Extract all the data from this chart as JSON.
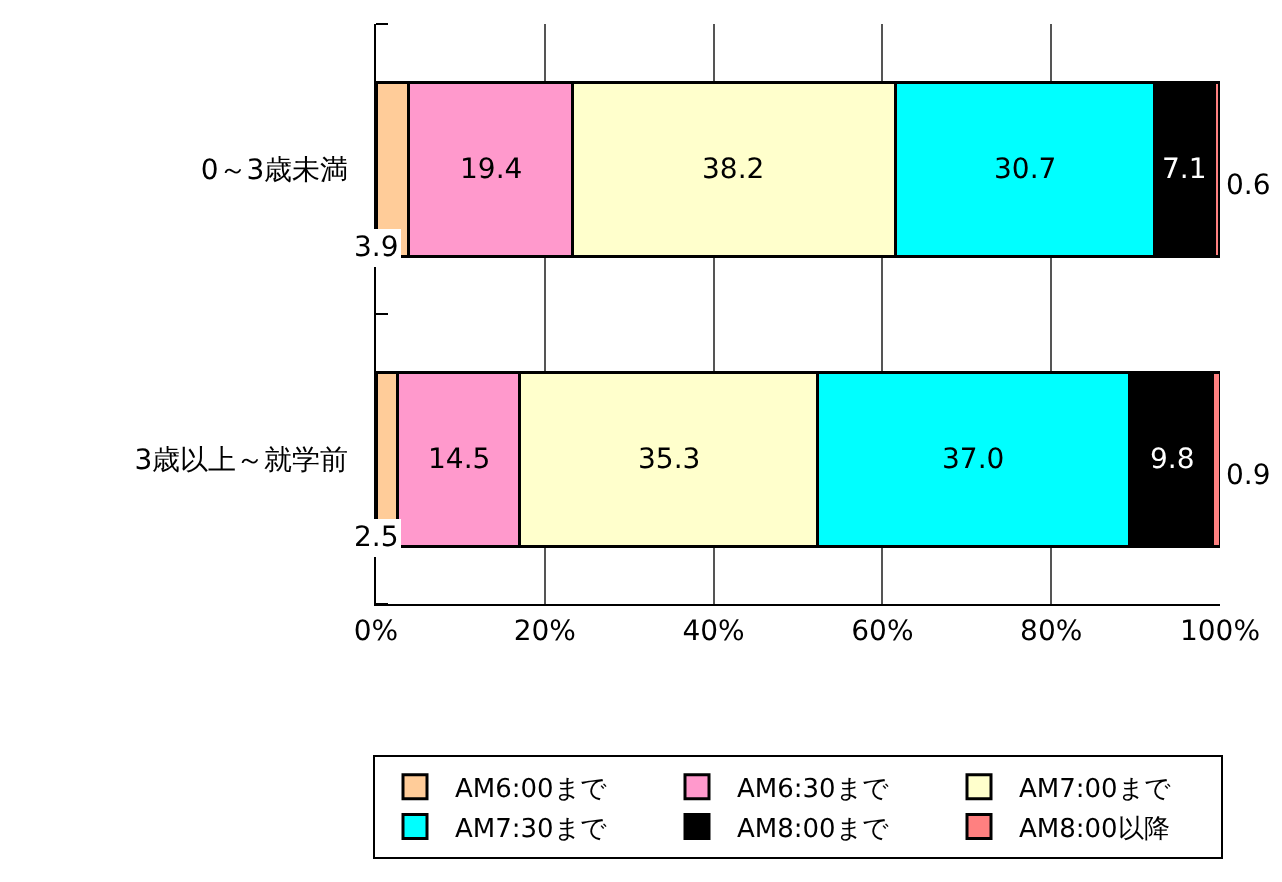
{
  "chart_data": {
    "type": "bar",
    "orientation": "horizontal",
    "stacked": true,
    "categories": [
      "0～3歳未満",
      "3歳以上～就学前"
    ],
    "series": [
      {
        "name": "AM6:00まで",
        "color": "#ffcc99",
        "values": [
          3.9,
          2.5
        ],
        "value_labels": [
          "3.9",
          "2.5"
        ]
      },
      {
        "name": "AM6:30まで",
        "color": "#ff99cc",
        "values": [
          19.4,
          14.5
        ],
        "value_labels": [
          "19.4",
          "14.5"
        ]
      },
      {
        "name": "AM7:00まで",
        "color": "#ffffcc",
        "values": [
          38.2,
          35.3
        ],
        "value_labels": [
          "38.2",
          "35.3"
        ]
      },
      {
        "name": "AM7:30まで",
        "color": "#00ffff",
        "values": [
          30.7,
          37.0
        ],
        "value_labels": [
          "30.7",
          "37.0"
        ]
      },
      {
        "name": "AM8:00まで",
        "color": "#000000",
        "values": [
          7.1,
          9.8
        ],
        "value_labels": [
          "7.1",
          "9.8"
        ]
      },
      {
        "name": "AM8:00以降",
        "color": "#ff8080",
        "values": [
          0.6,
          0.9
        ],
        "value_labels": [
          "0.6",
          "0.9"
        ]
      }
    ],
    "xlim": [
      0,
      100
    ],
    "xticks": [
      {
        "value": 0,
        "label": "0%"
      },
      {
        "value": 20,
        "label": "20%"
      },
      {
        "value": 40,
        "label": "40%"
      },
      {
        "value": 60,
        "label": "60%"
      },
      {
        "value": 80,
        "label": "80%"
      },
      {
        "value": 100,
        "label": "100%"
      }
    ],
    "grid": "x",
    "legend": "bottom"
  }
}
